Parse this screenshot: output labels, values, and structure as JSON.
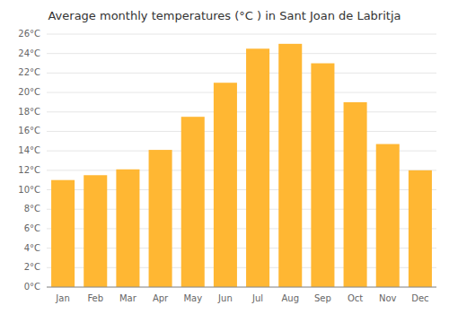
{
  "chart_data": {
    "type": "bar",
    "title": "Average monthly temperatures (°C ) in Sant Joan de Labritja",
    "categories": [
      "Jan",
      "Feb",
      "Mar",
      "Apr",
      "May",
      "Jun",
      "Jul",
      "Aug",
      "Sep",
      "Oct",
      "Nov",
      "Dec"
    ],
    "values": [
      11.0,
      11.5,
      12.1,
      14.1,
      17.5,
      21.0,
      24.5,
      25.0,
      23.0,
      19.0,
      14.7,
      12.0
    ],
    "color": "#FFB733",
    "ylim": [
      0,
      26
    ],
    "yticks": [
      {
        "value": 0,
        "label": "0°C"
      },
      {
        "value": 2,
        "label": "2°C"
      },
      {
        "value": 4,
        "label": "4°C"
      },
      {
        "value": 6,
        "label": "6°C"
      },
      {
        "value": 8,
        "label": "8°C"
      },
      {
        "value": 10,
        "label": "10°C"
      },
      {
        "value": 12,
        "label": "12°C"
      },
      {
        "value": 14,
        "label": "14°C"
      },
      {
        "value": 16,
        "label": "16°C"
      },
      {
        "value": 18,
        "label": "18°C"
      },
      {
        "value": 20,
        "label": "20°C"
      },
      {
        "value": 22,
        "label": "22°C"
      },
      {
        "value": 24,
        "label": "24°C"
      },
      {
        "value": 26,
        "label": "26°C"
      }
    ],
    "grid": true
  }
}
